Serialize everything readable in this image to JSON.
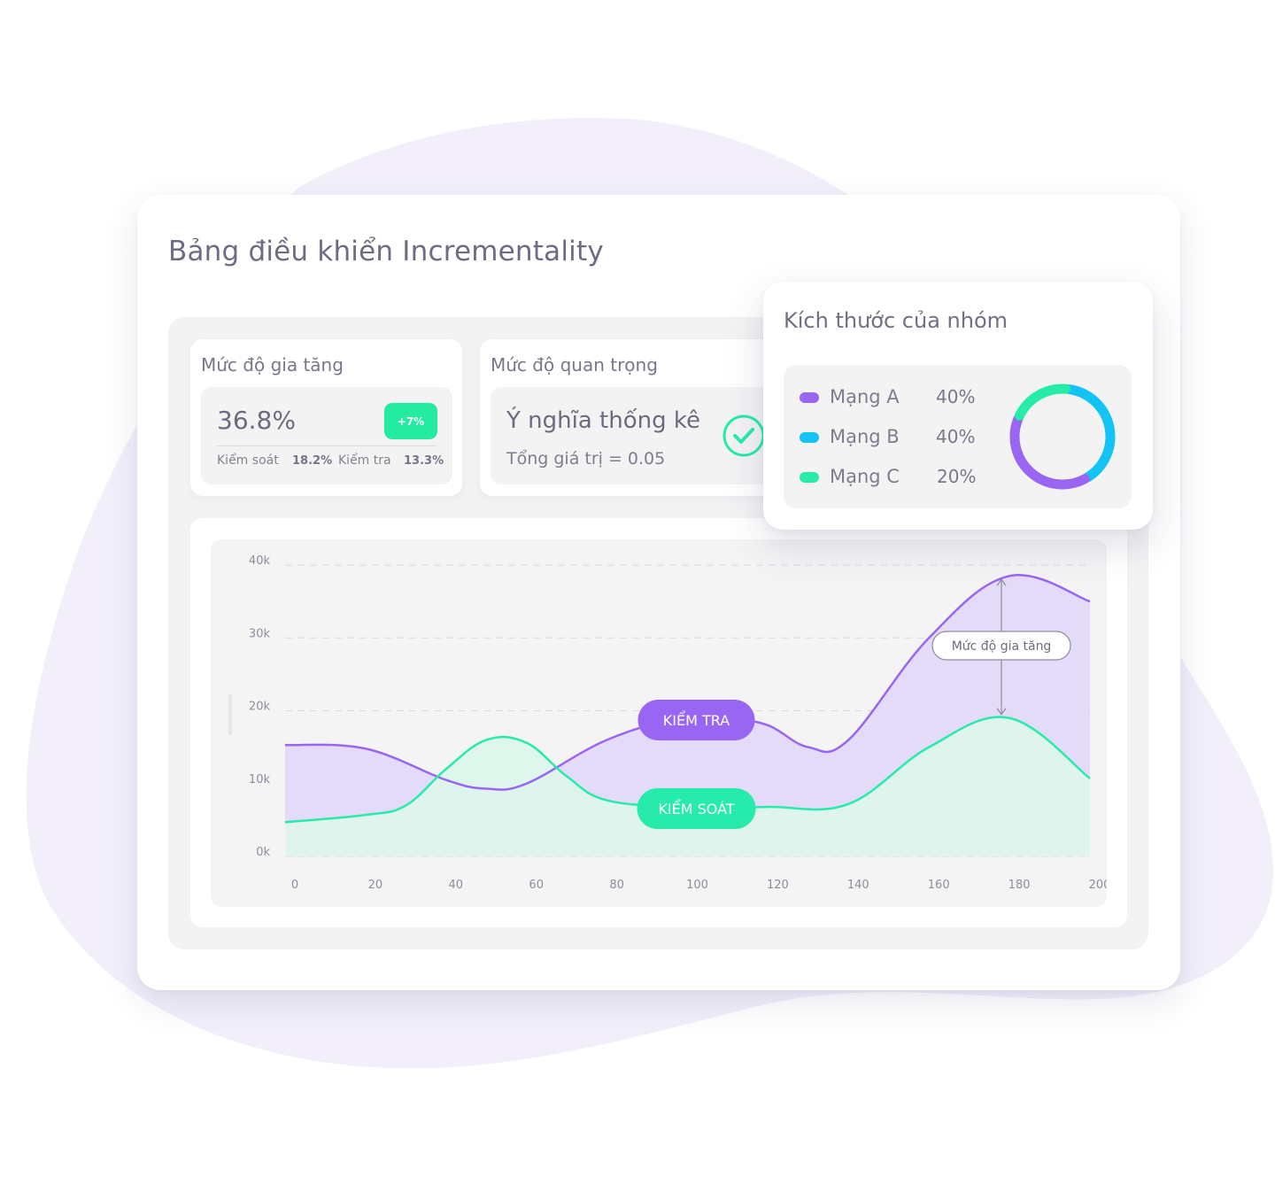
{
  "dashboard": {
    "title": "Bảng điều khiển Incrementality"
  },
  "lift_card": {
    "title": "Mức độ gia tăng",
    "value": "36.8%",
    "badge": "+7%",
    "control_label": "Kiểm soát",
    "control_value": "18.2%",
    "test_label": "Kiểm tra",
    "test_value": "13.3%"
  },
  "significance_card": {
    "title": "Mức độ quan trọng",
    "headline": "Ý nghĩa thống kê",
    "subtext": "Tổng giá trị = 0.05",
    "icon": "check-circle-icon"
  },
  "cohort": {
    "title": "Kích thước của nhóm",
    "items": [
      {
        "name": "Mạng A",
        "percent": "40%",
        "value": 40,
        "color": "#9866f2"
      },
      {
        "name": "Mạng B",
        "percent": "40%",
        "value": 40,
        "color": "#12c3f4"
      },
      {
        "name": "Mạng C",
        "percent": "20%",
        "value": 20,
        "color": "#26ebab"
      }
    ]
  },
  "colors": {
    "test": "#9866f2",
    "test_fill": "#e3d9f8",
    "control": "#26ebab",
    "control_fill": "#ddf6ec",
    "blob": "#f2effb"
  },
  "chart_data": {
    "type": "area",
    "x_ticks": [
      0,
      20,
      40,
      60,
      80,
      100,
      120,
      140,
      160,
      180,
      200
    ],
    "y_ticks": [
      "0k",
      "10k",
      "20k",
      "30k",
      "40k"
    ],
    "ylim": [
      0,
      40000
    ],
    "xlim": [
      0,
      200
    ],
    "grid": true,
    "series": [
      {
        "name": "KIỂM TRA",
        "x": [
          0,
          20,
          40,
          50,
          60,
          80,
          100,
          110,
          120,
          130,
          140,
          160,
          180,
          200
        ],
        "values": [
          15300,
          14800,
          10500,
          9300,
          10000,
          16000,
          19300,
          19000,
          18000,
          15000,
          16000,
          30000,
          38500,
          35000
        ]
      },
      {
        "name": "KIỂM SOÁT",
        "x": [
          0,
          20,
          30,
          40,
          50,
          60,
          70,
          80,
          100,
          120,
          140,
          160,
          180,
          200
        ],
        "values": [
          4700,
          5700,
          7000,
          12000,
          16000,
          15600,
          11000,
          7700,
          6800,
          6800,
          7200,
          15000,
          19000,
          10700
        ]
      }
    ],
    "annotation": "Mức độ gia tăng"
  }
}
